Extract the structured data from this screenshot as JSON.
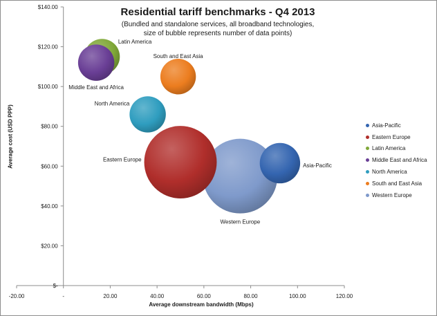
{
  "chart_data": {
    "type": "bubble",
    "title": "Residential tariff benchmarks - Q4 2013",
    "subtitle": [
      "(Bundled and standalone services, all broadband technologies,",
      "size of bubble represents number of data points)"
    ],
    "xlabel": "Average downstream bandwidth (Mbps)",
    "ylabel": "Average cost (USD PPP)",
    "xlim": [
      -20,
      120
    ],
    "ylim": [
      0,
      140
    ],
    "x_ticks": [
      {
        "value": -20,
        "label": "-20.00"
      },
      {
        "value": 0,
        "label": "-"
      },
      {
        "value": 20,
        "label": "20.00"
      },
      {
        "value": 40,
        "label": "40.00"
      },
      {
        "value": 60,
        "label": "60.00"
      },
      {
        "value": 80,
        "label": "80.00"
      },
      {
        "value": 100,
        "label": "100.00"
      },
      {
        "value": 120,
        "label": "120.00"
      }
    ],
    "y_ticks": [
      {
        "value": 0,
        "label": "$-"
      },
      {
        "value": 20,
        "label": "$20.00"
      },
      {
        "value": 40,
        "label": "$40.00"
      },
      {
        "value": 60,
        "label": "$60.00"
      },
      {
        "value": 80,
        "label": "$80.00"
      },
      {
        "value": 100,
        "label": "$100.00"
      },
      {
        "value": 120,
        "label": "$120.00"
      },
      {
        "value": 140,
        "label": "$140.00"
      }
    ],
    "grid": false,
    "legend_position": "right",
    "series": [
      {
        "name": "Asia-Pacific",
        "x": 92.5,
        "y": 61.5,
        "size": 0.31,
        "color": "#3465b0",
        "label": "Asia-Pacific"
      },
      {
        "name": "Eastern Europe",
        "x": 50,
        "y": 62,
        "size": 1.0,
        "color": "#b02e2b",
        "label": "Eastern Europe"
      },
      {
        "name": "Latin America",
        "x": 16.5,
        "y": 115,
        "size": 0.24,
        "color": "#80a838",
        "label": "Latin America"
      },
      {
        "name": "Middle East and Africa",
        "x": 14,
        "y": 112,
        "size": 0.25,
        "color": "#6a3f96",
        "label": "Middle East and Africa"
      },
      {
        "name": "North America",
        "x": 36,
        "y": 86,
        "size": 0.25,
        "color": "#2f9dbf",
        "label": "North America"
      },
      {
        "name": "South and East Asia",
        "x": 49,
        "y": 105,
        "size": 0.24,
        "color": "#ec7d1f",
        "label": "South and East Asia"
      },
      {
        "name": "Western Europe",
        "x": 75.5,
        "y": 55,
        "size": 1.06,
        "color": "#7f9acb",
        "label": "Western Europe"
      }
    ]
  }
}
